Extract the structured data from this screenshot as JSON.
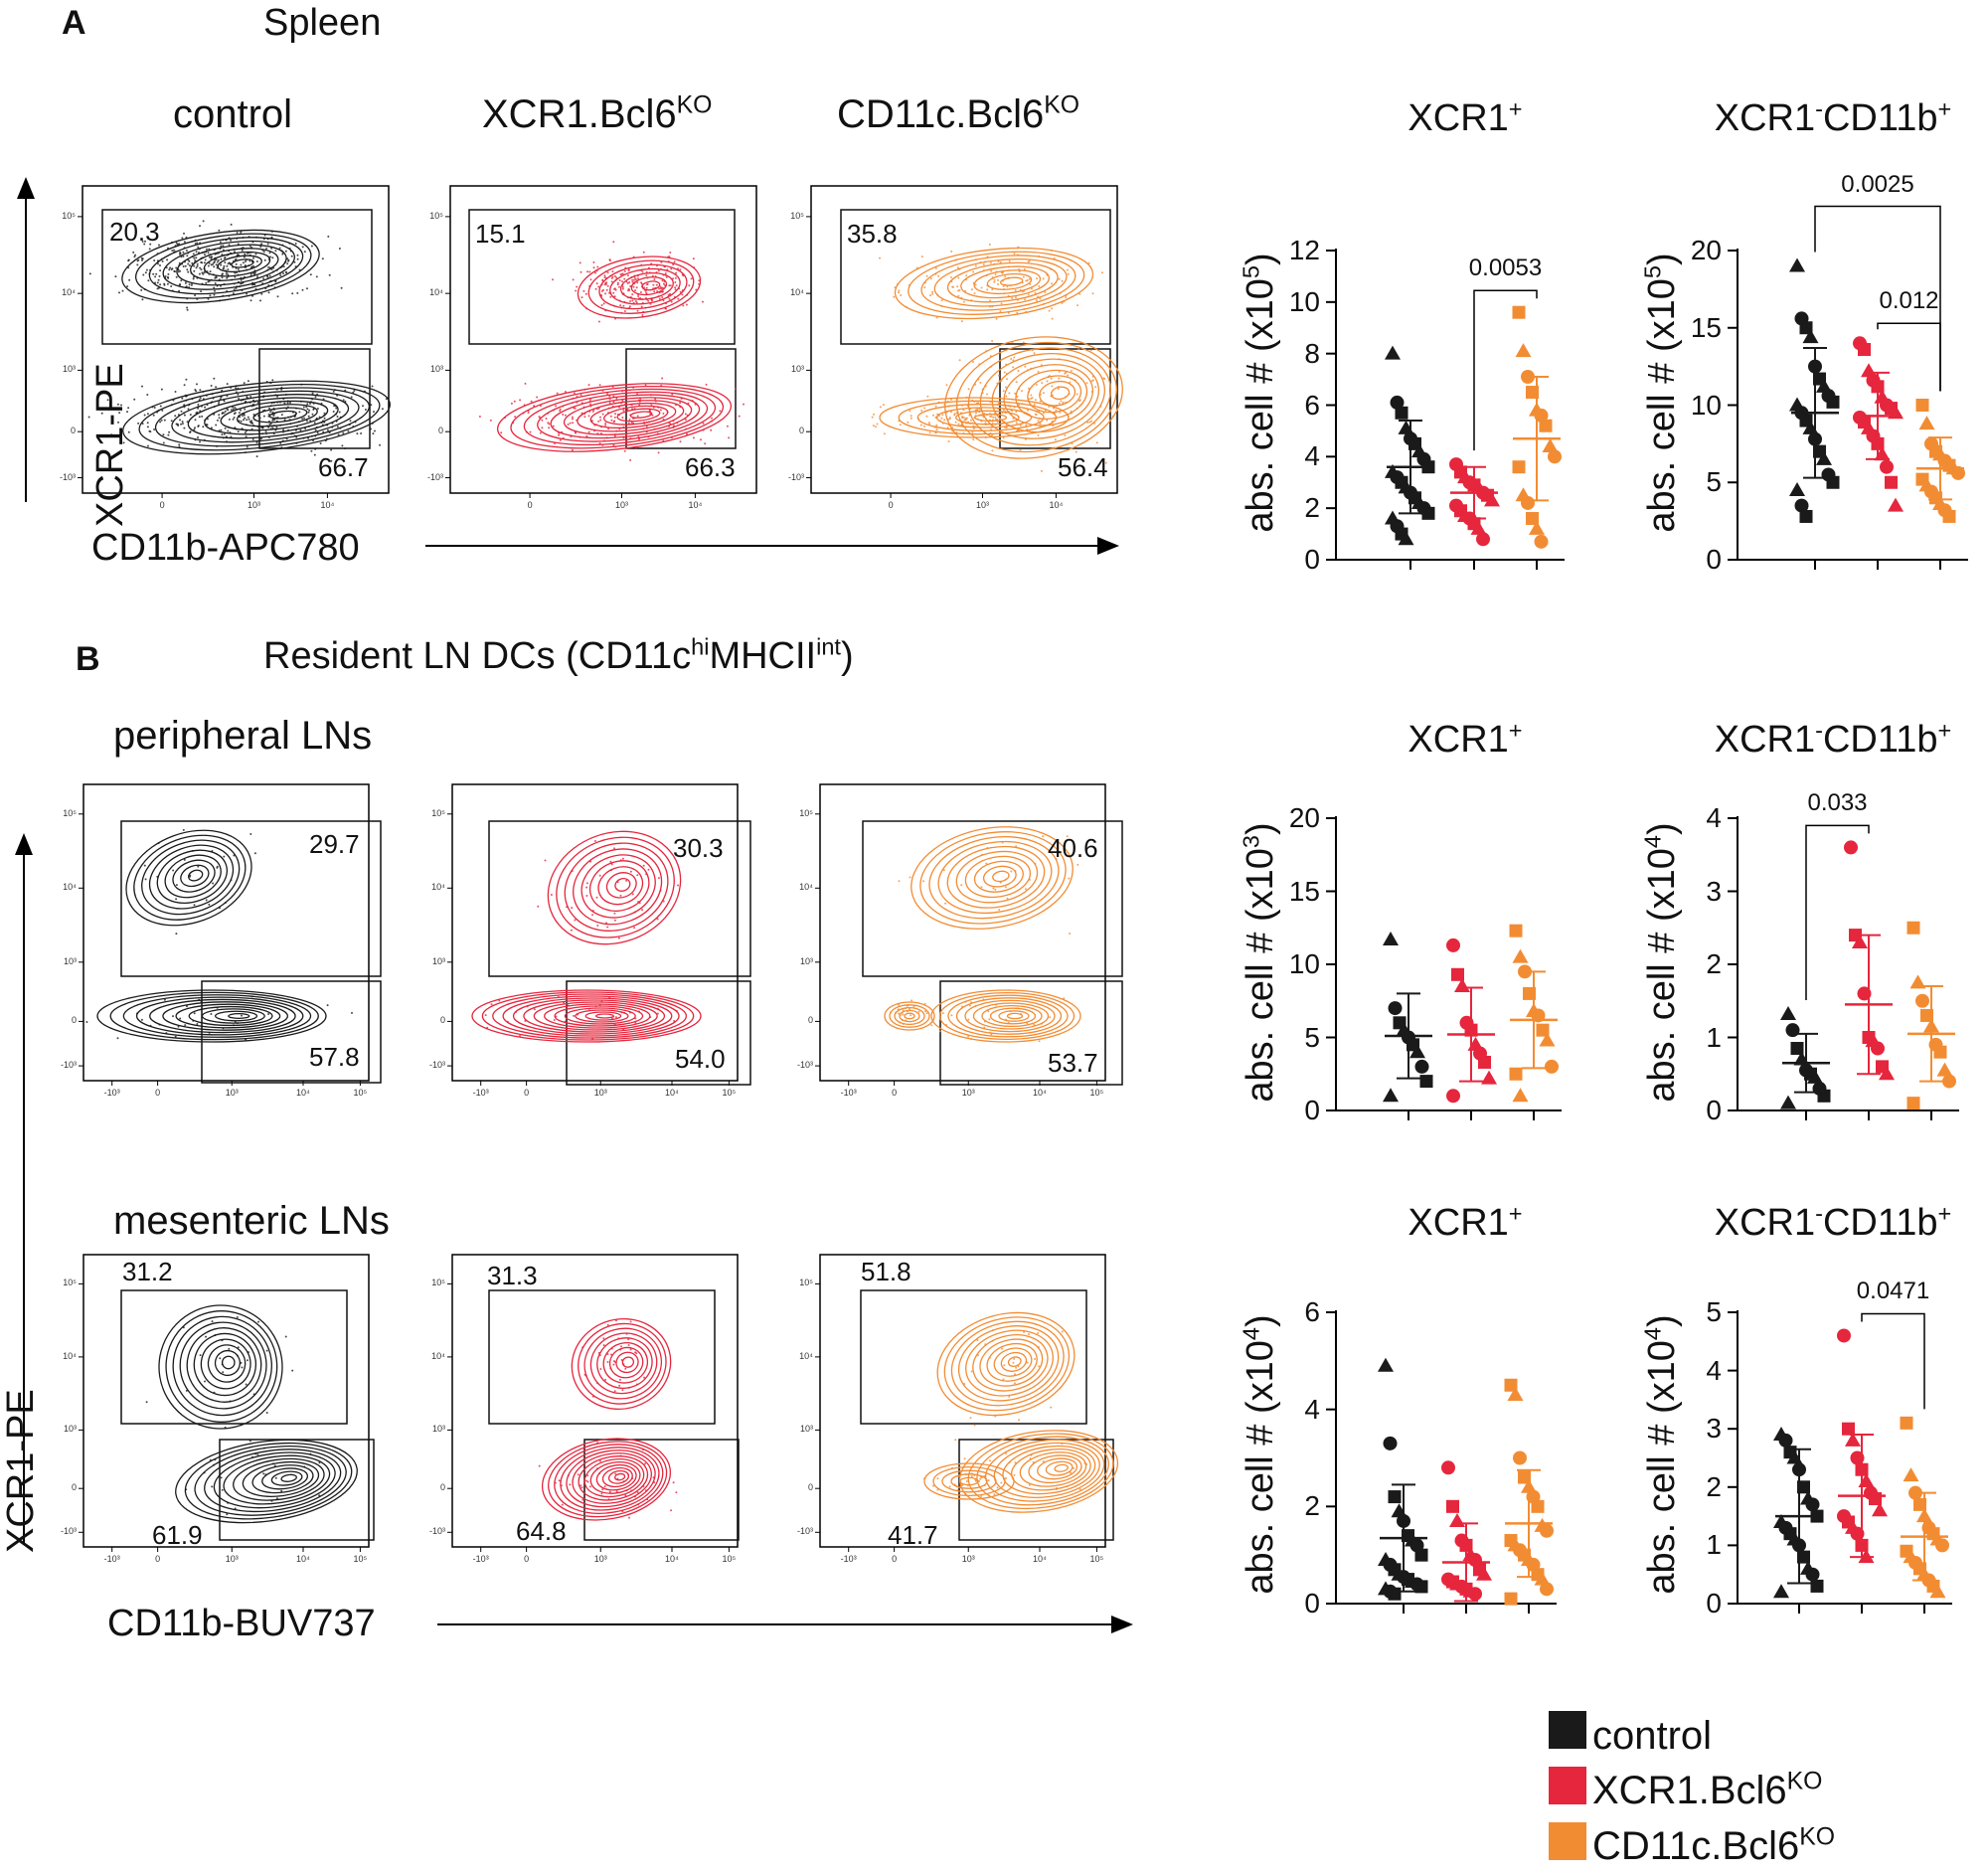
{
  "panel_A": {
    "label": "A",
    "title": "Spleen",
    "columns": [
      {
        "text": "control"
      },
      {
        "text": "XCR1.Bcl6",
        "sup": "KO"
      },
      {
        "text": "CD11c.Bcl6",
        "sup": "KO"
      }
    ],
    "y_axis": "XCR1-PE",
    "x_axis": "CD11b-APC780",
    "gates": [
      [
        "20.3",
        "66.7"
      ],
      [
        "15.1",
        "66.3"
      ],
      [
        "35.8",
        "56.4"
      ]
    ]
  },
  "panel_B": {
    "label": "B",
    "title_main": "Resident LN DCs (CD11c",
    "title_sup1": "hi",
    "title_mid": "MHCII",
    "title_sup2": "int",
    "title_end": ")",
    "row1_label": "peripheral LNs",
    "row2_label": "mesenteric LNs",
    "y_axis": "XCR1-PE",
    "x_axis": "CD11b-BUV737",
    "gates_row1": [
      [
        "29.7",
        "57.8"
      ],
      [
        "30.3",
        "54.0"
      ],
      [
        "40.6",
        "53.7"
      ]
    ],
    "gates_row2": [
      [
        "31.2",
        "61.9"
      ],
      [
        "31.3",
        "64.8"
      ],
      [
        "51.8",
        "41.7"
      ]
    ]
  },
  "flow_ticks": {
    "y": [
      "10⁵",
      "10⁴",
      "10³",
      "0",
      "-10³"
    ],
    "x_A": [
      "0",
      "10³",
      "10⁴"
    ],
    "x_B": [
      "-10³",
      "0",
      "10³",
      "10⁴",
      "10⁵"
    ]
  },
  "legend": {
    "items": [
      {
        "label": "control",
        "color": "#1a1a1a"
      },
      {
        "label": "XCR1.Bcl6",
        "sup": "KO",
        "color": "#e5263d"
      },
      {
        "label": "CD11c.Bcl6",
        "sup": "KO",
        "color": "#f28c33"
      }
    ]
  },
  "colors": {
    "control": "#1a1a1a",
    "xcr1": "#e5263d",
    "cd11c": "#f28c33"
  },
  "chart_data": [
    {
      "type": "scatter",
      "id": "A-xcr1",
      "title": "XCR1",
      "title_sup": "+",
      "ylabel": "abs. cell # (x10",
      "ylabel_sup": "5",
      "ylabel_end": ")",
      "ylim": [
        0,
        12
      ],
      "yticks": [
        0,
        2,
        4,
        6,
        8,
        10,
        12
      ],
      "groups": [
        "control",
        "XCR1.Bcl6KO",
        "CD11c.Bcl6KO"
      ],
      "mean": [
        3.6,
        2.6,
        4.7
      ],
      "sd": [
        1.8,
        1.0,
        2.4
      ],
      "points": [
        [
          8.0,
          6.1,
          5.7,
          5.1,
          4.7,
          4.5,
          4.2,
          3.9,
          3.6,
          3.4,
          3.2,
          3.0,
          2.8,
          2.6,
          2.4,
          2.2,
          2.0,
          1.8,
          1.6,
          1.3,
          1.0,
          0.8
        ],
        [
          3.7,
          3.4,
          3.2,
          3.0,
          2.9,
          2.8,
          2.6,
          2.5,
          2.3,
          2.1,
          1.9,
          1.7,
          1.6,
          1.4,
          1.2,
          0.8
        ],
        [
          9.6,
          8.1,
          7.1,
          6.5,
          5.8,
          5.6,
          5.2,
          4.4,
          4.0,
          3.6,
          2.5,
          2.2,
          1.6,
          1.2,
          0.7
        ]
      ],
      "comparisons": [
        {
          "pair": [
            1,
            2
          ],
          "label": "0.0053"
        }
      ]
    },
    {
      "type": "scatter",
      "id": "A-cd11b",
      "title": "XCR1",
      "title_sup": "-",
      "title_end": "CD11b",
      "title_sup2": "+",
      "ylabel": "abs. cell # (x10",
      "ylabel_sup": "5",
      "ylabel_end": ")",
      "ylim": [
        0,
        20
      ],
      "yticks": [
        0,
        5,
        10,
        15,
        20
      ],
      "groups": [
        "control",
        "XCR1.Bcl6KO",
        "CD11c.Bcl6KO"
      ],
      "mean": [
        9.5,
        9.3,
        5.9
      ],
      "sd": [
        4.2,
        2.8,
        2.0
      ],
      "points": [
        [
          19.0,
          15.6,
          15.0,
          14.4,
          12.5,
          11.7,
          11.2,
          10.6,
          10.2,
          10.0,
          9.5,
          9.0,
          8.5,
          7.8,
          7.0,
          6.5,
          5.5,
          5.0,
          4.5,
          3.5,
          2.8
        ],
        [
          14.0,
          13.6,
          12.2,
          11.6,
          11.2,
          10.5,
          10.0,
          9.8,
          9.5,
          9.2,
          8.9,
          8.5,
          8.0,
          7.5,
          6.8,
          6.0,
          5.0,
          3.5
        ],
        [
          10.0,
          8.8,
          7.5,
          7.0,
          6.8,
          6.4,
          6.1,
          5.9,
          5.6,
          5.2,
          4.8,
          4.4,
          4.0,
          3.6,
          3.2,
          2.8
        ]
      ],
      "comparisons": [
        {
          "pair": [
            0,
            2
          ],
          "label": "0.0025"
        },
        {
          "pair": [
            1,
            2
          ],
          "label": "0.012"
        }
      ]
    },
    {
      "type": "scatter",
      "id": "Bp-xcr1",
      "title": "XCR1",
      "title_sup": "+",
      "ylabel": "abs. cell # (x10",
      "ylabel_sup": "3",
      "ylabel_end": ")",
      "ylim": [
        0,
        20
      ],
      "yticks": [
        0,
        5,
        10,
        15,
        20
      ],
      "groups": [
        "control",
        "XCR1.Bcl6KO",
        "CD11c.Bcl6KO"
      ],
      "mean": [
        5.1,
        5.2,
        6.2
      ],
      "sd": [
        2.9,
        3.2,
        3.3
      ],
      "points": [
        [
          11.7,
          7.0,
          6.0,
          5.5,
          5.0,
          4.5,
          4.0,
          3.0,
          2.0,
          1.0
        ],
        [
          11.3,
          9.3,
          8.5,
          6.0,
          5.5,
          4.5,
          3.9,
          3.3,
          2.2,
          1.0
        ],
        [
          12.3,
          10.5,
          9.5,
          8.0,
          6.8,
          6.5,
          5.5,
          4.8,
          3.0,
          2.5,
          1.0
        ]
      ],
      "comparisons": []
    },
    {
      "type": "scatter",
      "id": "Bp-cd11b",
      "title": "XCR1",
      "title_sup": "-",
      "title_end": "CD11b",
      "title_sup2": "+",
      "ylabel": "abs. cell # (x10",
      "ylabel_sup": "4",
      "ylabel_end": ")",
      "ylim": [
        0,
        4
      ],
      "yticks": [
        0,
        1,
        2,
        3,
        4
      ],
      "groups": [
        "control",
        "XCR1.Bcl6KO",
        "CD11c.Bcl6KO"
      ],
      "mean": [
        0.65,
        1.45,
        1.05
      ],
      "sd": [
        0.4,
        0.95,
        0.65
      ],
      "points": [
        [
          1.32,
          1.1,
          0.85,
          0.7,
          0.55,
          0.5,
          0.45,
          0.3,
          0.2,
          0.1
        ],
        [
          3.6,
          2.4,
          2.3,
          1.6,
          1.0,
          0.95,
          0.85,
          0.6,
          0.5
        ],
        [
          2.5,
          1.75,
          1.5,
          1.3,
          1.15,
          0.9,
          0.8,
          0.55,
          0.4,
          0.1
        ]
      ],
      "comparisons": [
        {
          "pair": [
            0,
            1
          ],
          "label": "0.033"
        }
      ]
    },
    {
      "type": "scatter",
      "id": "Bm-xcr1",
      "title": "XCR1",
      "title_sup": "+",
      "ylabel": "abs. cell # (x10",
      "ylabel_sup": "4",
      "ylabel_end": ")",
      "ylim": [
        0,
        6
      ],
      "yticks": [
        0,
        2,
        4,
        6
      ],
      "groups": [
        "control",
        "XCR1.Bcl6KO",
        "CD11c.Bcl6KO"
      ],
      "mean": [
        1.35,
        0.85,
        1.65
      ],
      "sd": [
        1.1,
        0.8,
        1.1
      ],
      "points": [
        [
          4.9,
          3.3,
          2.2,
          1.9,
          1.7,
          1.4,
          1.3,
          1.2,
          1.0,
          0.9,
          0.8,
          0.7,
          0.6,
          0.55,
          0.5,
          0.45,
          0.4,
          0.35,
          0.3,
          0.25,
          0.2
        ],
        [
          2.8,
          2.0,
          1.7,
          1.3,
          1.2,
          1.0,
          0.9,
          0.7,
          0.6,
          0.5,
          0.45,
          0.4,
          0.35,
          0.3,
          0.25,
          0.2
        ],
        [
          4.5,
          4.3,
          3.0,
          2.6,
          2.4,
          2.2,
          2.0,
          1.6,
          1.5,
          1.3,
          1.2,
          1.1,
          1.0,
          0.9,
          0.8,
          0.6,
          0.5,
          0.3,
          0.1
        ]
      ],
      "comparisons": []
    },
    {
      "type": "scatter",
      "id": "Bm-cd11b",
      "title": "XCR1",
      "title_sup": "-",
      "title_end": "CD11b",
      "title_sup2": "+",
      "ylabel": "abs. cell # (x10",
      "ylabel_sup": "4",
      "ylabel_end": ")",
      "ylim": [
        0,
        5
      ],
      "yticks": [
        0,
        1,
        2,
        3,
        4,
        5
      ],
      "groups": [
        "control",
        "XCR1.Bcl6KO",
        "CD11c.Bcl6KO"
      ],
      "mean": [
        1.5,
        1.85,
        1.15
      ],
      "sd": [
        1.15,
        1.05,
        0.75
      ],
      "points": [
        [
          2.9,
          2.8,
          2.6,
          2.5,
          2.3,
          2.0,
          1.8,
          1.7,
          1.5,
          1.4,
          1.3,
          1.2,
          1.1,
          1.0,
          0.8,
          0.6,
          0.5,
          0.3,
          0.2
        ],
        [
          4.6,
          3.0,
          2.8,
          2.5,
          2.3,
          2.1,
          1.9,
          1.8,
          1.6,
          1.5,
          1.4,
          1.3,
          1.2,
          1.0,
          0.8
        ],
        [
          3.1,
          2.2,
          1.9,
          1.7,
          1.5,
          1.3,
          1.2,
          1.1,
          1.0,
          0.9,
          0.8,
          0.7,
          0.6,
          0.5,
          0.4,
          0.3,
          0.2
        ]
      ],
      "comparisons": [
        {
          "pair": [
            1,
            2
          ],
          "label": "0.0471"
        }
      ]
    }
  ]
}
